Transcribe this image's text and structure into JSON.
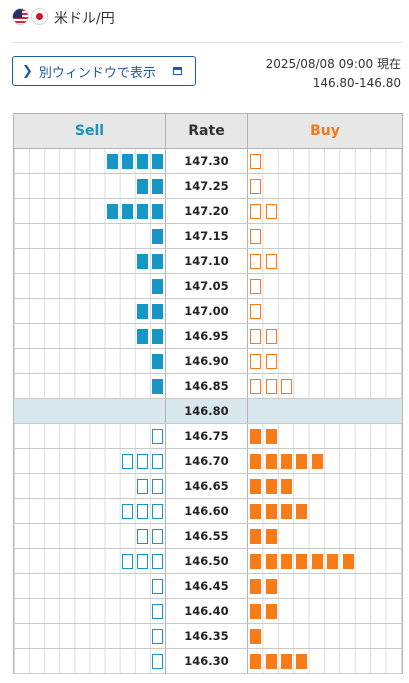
{
  "header": {
    "pair": "米ドル/円",
    "flag_left": "us-flag-icon",
    "flag_right": "jp-flag-icon"
  },
  "button": {
    "label": "別ウィンドウで表示",
    "icon_left": "chevron-right-icon",
    "icon_right": "window-icon"
  },
  "status": {
    "timestamp": "2025/08/08 09:00 現在",
    "price": "146.80-146.80"
  },
  "table": {
    "sell_header": "Sell",
    "rate_header": "Rate",
    "buy_header": "Buy"
  },
  "colors": {
    "sell": "#1696c4",
    "buy": "#f77b16",
    "current_row": "#d8e7ec"
  },
  "rows": [
    {
      "rate": "147.30",
      "sell": {
        "filled": 4,
        "outline": 0
      },
      "buy": {
        "filled": 0,
        "outline": 1
      }
    },
    {
      "rate": "147.25",
      "sell": {
        "filled": 2,
        "outline": 0
      },
      "buy": {
        "filled": 0,
        "outline": 1
      }
    },
    {
      "rate": "147.20",
      "sell": {
        "filled": 4,
        "outline": 0
      },
      "buy": {
        "filled": 0,
        "outline": 2
      }
    },
    {
      "rate": "147.15",
      "sell": {
        "filled": 1,
        "outline": 0
      },
      "buy": {
        "filled": 0,
        "outline": 1
      }
    },
    {
      "rate": "147.10",
      "sell": {
        "filled": 2,
        "outline": 0
      },
      "buy": {
        "filled": 0,
        "outline": 2
      }
    },
    {
      "rate": "147.05",
      "sell": {
        "filled": 1,
        "outline": 0
      },
      "buy": {
        "filled": 0,
        "outline": 1
      }
    },
    {
      "rate": "147.00",
      "sell": {
        "filled": 2,
        "outline": 0
      },
      "buy": {
        "filled": 0,
        "outline": 1
      }
    },
    {
      "rate": "146.95",
      "sell": {
        "filled": 2,
        "outline": 0
      },
      "buy": {
        "filled": 0,
        "outline": 2
      }
    },
    {
      "rate": "146.90",
      "sell": {
        "filled": 1,
        "outline": 0
      },
      "buy": {
        "filled": 0,
        "outline": 2
      }
    },
    {
      "rate": "146.85",
      "sell": {
        "filled": 1,
        "outline": 0
      },
      "buy": {
        "filled": 0,
        "outline": 3
      }
    },
    {
      "rate": "146.80",
      "current": true,
      "sell": {
        "filled": 0,
        "outline": 0
      },
      "buy": {
        "filled": 0,
        "outline": 0
      }
    },
    {
      "rate": "146.75",
      "sell": {
        "filled": 0,
        "outline": 1
      },
      "buy": {
        "filled": 2,
        "outline": 0
      }
    },
    {
      "rate": "146.70",
      "sell": {
        "filled": 0,
        "outline": 3
      },
      "buy": {
        "filled": 5,
        "outline": 0
      }
    },
    {
      "rate": "146.65",
      "sell": {
        "filled": 0,
        "outline": 2
      },
      "buy": {
        "filled": 3,
        "outline": 0
      }
    },
    {
      "rate": "146.60",
      "sell": {
        "filled": 0,
        "outline": 3
      },
      "buy": {
        "filled": 4,
        "outline": 0
      }
    },
    {
      "rate": "146.55",
      "sell": {
        "filled": 0,
        "outline": 2
      },
      "buy": {
        "filled": 2,
        "outline": 0
      }
    },
    {
      "rate": "146.50",
      "sell": {
        "filled": 0,
        "outline": 3
      },
      "buy": {
        "filled": 7,
        "outline": 0
      }
    },
    {
      "rate": "146.45",
      "sell": {
        "filled": 0,
        "outline": 1
      },
      "buy": {
        "filled": 2,
        "outline": 0
      }
    },
    {
      "rate": "146.40",
      "sell": {
        "filled": 0,
        "outline": 1
      },
      "buy": {
        "filled": 2,
        "outline": 0
      }
    },
    {
      "rate": "146.35",
      "sell": {
        "filled": 0,
        "outline": 1
      },
      "buy": {
        "filled": 1,
        "outline": 0
      }
    },
    {
      "rate": "146.30",
      "sell": {
        "filled": 0,
        "outline": 1
      },
      "buy": {
        "filled": 4,
        "outline": 0
      }
    }
  ]
}
